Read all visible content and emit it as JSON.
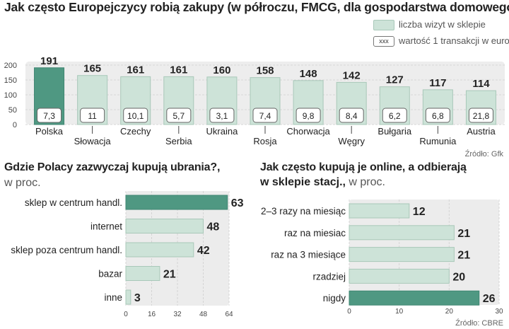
{
  "colors": {
    "light": "#cde3d8",
    "light_stroke": "#a9c8b9",
    "dark": "#4f9882",
    "track": "#e6e6e6",
    "grid": "#d0d0d0",
    "text": "#222222"
  },
  "source1": "Źródło: Gfk",
  "source2": "Źródło: CBRE",
  "chart_data": [
    {
      "type": "bar",
      "title": "Jak często Europejczycy robią zakupy (w półroczu, FMCG, dla gospodarstwa domowego)",
      "categories": [
        "Polska",
        "Słowacja",
        "Czechy",
        "Serbia",
        "Ukraina",
        "Rosja",
        "Chorwacja",
        "Węgry",
        "Bułgaria",
        "Rumunia",
        "Austria"
      ],
      "series": [
        {
          "name": "liczba wizyt w sklepie",
          "values": [
            191,
            165,
            161,
            161,
            160,
            158,
            148,
            142,
            127,
            117,
            114
          ]
        },
        {
          "name": "wartość 1 transakcji w euro",
          "values": [
            "7,3",
            "11",
            "10,1",
            "5,7",
            "3,1",
            "7,4",
            "9,8",
            "8,4",
            "6,2",
            "6,8",
            "21,8"
          ]
        }
      ],
      "highlight_index": 0,
      "legend_box_text": "xxx",
      "ylim": [
        0,
        200
      ],
      "yticks": [
        0,
        50,
        100,
        150,
        200
      ]
    },
    {
      "type": "bar",
      "orientation": "horizontal",
      "title": "Gdzie Polacy zazwyczaj kupują ubrania?,",
      "subtitle": "w proc.",
      "categories": [
        "sklep w centrum handl.",
        "internet",
        "sklep poza centrum handl.",
        "bazar",
        "inne"
      ],
      "values": [
        63,
        48,
        42,
        21,
        3
      ],
      "highlight_index": 0,
      "xlim": [
        0,
        64
      ],
      "xticks": [
        0,
        16,
        32,
        48,
        64
      ]
    },
    {
      "type": "bar",
      "orientation": "horizontal",
      "title": "Jak często kupują je online, a odbierają",
      "title_line2_bold": "w sklepie stacj.,",
      "title_line2_rest": " w proc.",
      "categories": [
        "2–3 razy na miesiąc",
        "raz na miesiac",
        "raz na 3 miesiące",
        "rzadziej",
        "nigdy"
      ],
      "values": [
        12,
        21,
        21,
        20,
        26
      ],
      "highlight_index": 4,
      "xlim": [
        0,
        30
      ],
      "xticks": [
        0,
        10,
        20,
        30
      ]
    }
  ]
}
